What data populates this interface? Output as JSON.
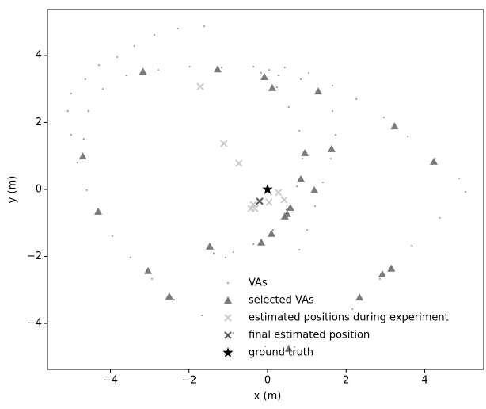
{
  "chart_data": {
    "type": "scatter",
    "xlabel": "x (m)",
    "ylabel": "y (m)",
    "xlim": [
      -5.6,
      5.5
    ],
    "ylim": [
      -5.37,
      5.37
    ],
    "xticks": [
      {
        "value": -4,
        "label": "−4"
      },
      {
        "value": -2,
        "label": "−2"
      },
      0,
      2,
      4
    ],
    "yticks": [
      {
        "value": -4,
        "label": "−4"
      },
      {
        "value": -2,
        "label": "−2"
      },
      0,
      2,
      4
    ],
    "legend": "lower center",
    "series": [
      {
        "name": "VAs",
        "color": "#8c8c8c",
        "marker": "dot",
        "x": [
          -1.61,
          -2.28,
          -2.88,
          -3.39,
          -3.83,
          -4.29,
          -4.64,
          -5.0,
          -5.08,
          -5.0,
          -4.84,
          -4.6,
          -4.29,
          -3.95,
          -3.49,
          -2.94,
          -2.38,
          -1.67,
          -0.87,
          -0.06,
          0.69,
          1.45,
          2.16,
          2.86,
          3.67,
          4.38,
          5.04,
          4.88,
          4.27,
          3.57,
          2.96,
          2.26,
          1.65,
          1.05,
          0.44,
          -0.36,
          -1.17,
          -1.98,
          -2.78,
          -3.59,
          -4.19,
          -4.56,
          -4.68,
          -0.16,
          0.28,
          0.85,
          1.35,
          1.65,
          1.73,
          1.61,
          1.41,
          1.21,
          1.01,
          0.81,
          0.24,
          0.54,
          0.81,
          0.89,
          0.75,
          0.48,
          0.14,
          -0.36,
          -0.87,
          -1.37,
          -1.07,
          -1.41,
          -0.06,
          0.04
        ],
        "y": [
          4.87,
          4.8,
          4.61,
          4.28,
          3.95,
          3.71,
          3.29,
          2.86,
          2.34,
          1.63,
          0.8,
          -0.02,
          -0.73,
          -1.39,
          -2.03,
          -2.67,
          -3.29,
          -3.76,
          -4.28,
          -4.68,
          -4.7,
          -4.23,
          -3.57,
          -2.67,
          -1.68,
          -0.85,
          -0.07,
          0.33,
          0.92,
          1.58,
          2.15,
          2.7,
          3.1,
          3.48,
          3.64,
          3.66,
          3.64,
          3.66,
          3.57,
          3.4,
          3.0,
          2.34,
          1.51,
          3.48,
          3.4,
          3.29,
          2.86,
          2.34,
          1.63,
          0.92,
          0.21,
          -0.5,
          -1.21,
          -1.8,
          3.05,
          2.46,
          1.75,
          0.92,
          0.09,
          -0.61,
          -1.21,
          -1.63,
          -1.87,
          -1.91,
          -2.03,
          -1.73,
          3.29,
          3.57
        ]
      },
      {
        "name": "selected VAs",
        "color": "#7a7a7a",
        "marker": "triangle",
        "x": [
          -3.17,
          -1.27,
          -0.08,
          0.12,
          1.29,
          3.23,
          4.23,
          1.63,
          0.95,
          0.85,
          1.19,
          0.58,
          0.5,
          0.44,
          0.1,
          -0.16,
          -1.47,
          -4.7,
          -4.31,
          -3.04,
          -2.5,
          0.54,
          2.34,
          2.92,
          3.15
        ],
        "y": [
          3.52,
          3.59,
          3.36,
          3.03,
          2.93,
          1.89,
          0.83,
          1.21,
          1.09,
          0.31,
          -0.02,
          -0.54,
          -0.73,
          -0.8,
          -1.32,
          -1.58,
          -1.7,
          0.99,
          -0.66,
          -2.43,
          -3.19,
          -4.75,
          -3.22,
          -2.53,
          -2.36
        ]
      },
      {
        "name": "estimated positions during experiment",
        "color": "#cccccc",
        "marker": "x",
        "x": [
          -1.71,
          -1.11,
          -0.73,
          0.28,
          0.42,
          0.04,
          -0.36,
          -0.42,
          -0.32
        ],
        "y": [
          3.07,
          1.37,
          0.78,
          -0.09,
          -0.31,
          -0.38,
          -0.45,
          -0.57,
          -0.57
        ]
      },
      {
        "name": "final estimated position",
        "color": "#555555",
        "marker": "x",
        "x": [
          -0.2
        ],
        "y": [
          -0.35
        ]
      },
      {
        "name": "ground truth",
        "color": "#000000",
        "marker": "star",
        "x": [
          0
        ],
        "y": [
          0
        ]
      }
    ]
  }
}
